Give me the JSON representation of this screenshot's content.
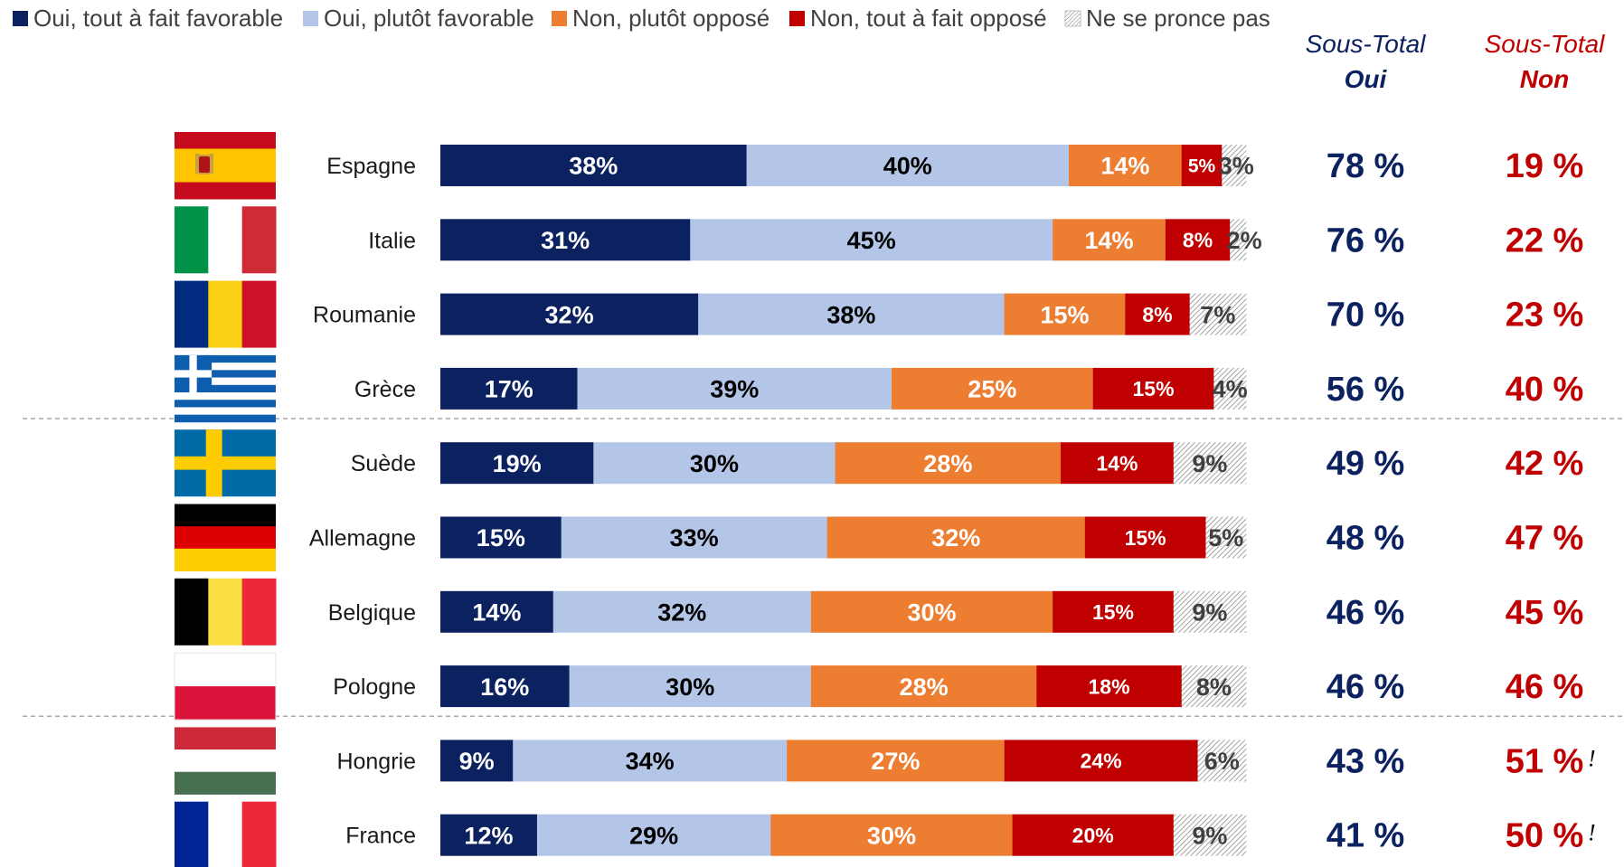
{
  "chart_data": {
    "type": "bar",
    "orientation": "horizontal",
    "stacked": true,
    "legend": "top-left",
    "grid": false,
    "series": [
      {
        "name": "Oui, tout à fait favorable",
        "color": "#0b2160",
        "values": [
          38,
          31,
          32,
          17,
          19,
          15,
          14,
          16,
          9,
          12
        ]
      },
      {
        "name": "Oui, plutôt favorable",
        "color": "#b4c6e7",
        "values": [
          40,
          45,
          38,
          39,
          30,
          33,
          32,
          30,
          34,
          29
        ]
      },
      {
        "name": "Non, plutôt opposé",
        "color": "#ed7d31",
        "values": [
          14,
          14,
          15,
          25,
          28,
          32,
          30,
          28,
          27,
          30
        ]
      },
      {
        "name": "Non, tout à fait opposé",
        "color": "#c00000",
        "values": [
          5,
          8,
          8,
          15,
          14,
          15,
          15,
          18,
          24,
          20
        ]
      },
      {
        "name": "Ne se pronce pas",
        "color": "hatched-grey",
        "values": [
          3,
          2,
          7,
          4,
          9,
          5,
          9,
          8,
          6,
          9
        ]
      }
    ],
    "categories": [
      "Espagne",
      "Italie",
      "Roumanie",
      "Grèce",
      "Suède",
      "Allemagne",
      "Belgique",
      "Pologne",
      "Hongrie",
      "France"
    ],
    "segment_labels": [
      [
        "38%",
        "40%",
        "14%",
        "5%",
        "3%"
      ],
      [
        "31%",
        "45%",
        "14%",
        "8%",
        "2%"
      ],
      [
        "32%",
        "38%",
        "15%",
        "8%",
        "7%"
      ],
      [
        "17%",
        "39%",
        "25%",
        "15%",
        "4%"
      ],
      [
        "19%",
        "30%",
        "28%",
        "14%",
        "9%"
      ],
      [
        "15%",
        "33%",
        "32%",
        "15%",
        "5%"
      ],
      [
        "14%",
        "32%",
        "30%",
        "15%",
        "9%"
      ],
      [
        "16%",
        "30%",
        "28%",
        "18%",
        "8%"
      ],
      [
        "9%",
        "34%",
        "27%",
        "24%",
        "6%"
      ],
      [
        "12%",
        "29%",
        "30%",
        "20%",
        "9%"
      ]
    ],
    "subtotal_oui_header": [
      "Sous-Total",
      "Oui"
    ],
    "subtotal_non_header": [
      "Sous-Total",
      "Non"
    ],
    "subtotal_oui": [
      "78 %",
      "76 %",
      "70 %",
      "56 %",
      "49 %",
      "48 %",
      "46 %",
      "46 %",
      "43 %",
      "41 %"
    ],
    "subtotal_non": [
      "19 %",
      "22 %",
      "23 %",
      "40 %",
      "42 %",
      "47 %",
      "45 %",
      "46 %",
      "51 %",
      "50 %"
    ],
    "flags": [
      "spain-flag",
      "italy-flag",
      "romania-flag",
      "greece-flag",
      "sweden-flag",
      "germany-flag",
      "belgium-flag",
      "poland-flag",
      "hungary-flag",
      "france-flag"
    ],
    "non_markers": [
      "",
      "",
      "",
      "",
      "",
      "",
      "",
      "",
      "!",
      "!"
    ],
    "group_separators_after": [
      3,
      7
    ],
    "colors": {
      "oui_total": "#0b2160",
      "non_total": "#c00000",
      "separator": "#a6a6a6"
    }
  }
}
